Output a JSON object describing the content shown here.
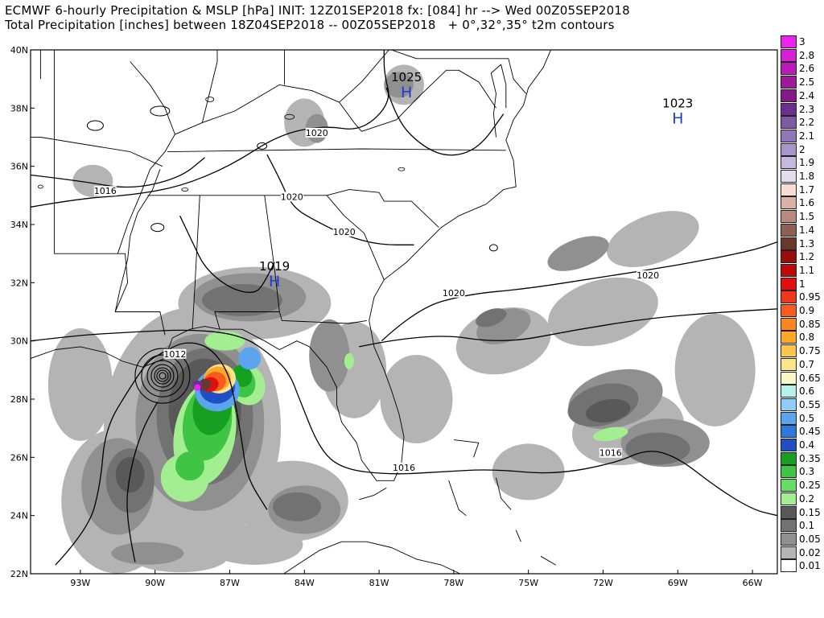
{
  "title_line1": "ECMWF 6-hourly Precipitation & MSLP [hPa] INIT: 12Z01SEP2018 fx: [084] hr --> Wed 00Z05SEP2018",
  "title_line2": "Total Precipitation [inches] between 18Z04SEP2018 -- 00Z05SEP2018   + 0°,32°,35° t2m contours",
  "map": {
    "lon_range": [
      -95,
      -65
    ],
    "lat_range": [
      22,
      40
    ],
    "lat_ticks": [
      {
        "lat": 40,
        "label": "40N"
      },
      {
        "lat": 38,
        "label": "38N"
      },
      {
        "lat": 36,
        "label": "36N"
      },
      {
        "lat": 34,
        "label": "34N"
      },
      {
        "lat": 32,
        "label": "32N"
      },
      {
        "lat": 30,
        "label": "30N"
      },
      {
        "lat": 28,
        "label": "28N"
      },
      {
        "lat": 26,
        "label": "26N"
      },
      {
        "lat": 24,
        "label": "24N"
      },
      {
        "lat": 22,
        "label": "22N"
      }
    ],
    "lon_ticks": [
      {
        "lon": -93,
        "label": "93W"
      },
      {
        "lon": -90,
        "label": "90W"
      },
      {
        "lon": -87,
        "label": "87W"
      },
      {
        "lon": -84,
        "label": "84W"
      },
      {
        "lon": -81,
        "label": "81W"
      },
      {
        "lon": -78,
        "label": "78W"
      },
      {
        "lon": -75,
        "label": "75W"
      },
      {
        "lon": -72,
        "label": "72W"
      },
      {
        "lon": -69,
        "label": "69W"
      },
      {
        "lon": -66,
        "label": "66W"
      }
    ],
    "pressure_centers": [
      {
        "type": "H",
        "value": "1025",
        "lon": -79.9,
        "lat": 38.7
      },
      {
        "type": "H",
        "value": "1023",
        "lon": -69.0,
        "lat": 37.8
      },
      {
        "type": "H",
        "value": "1019",
        "lon": -85.2,
        "lat": 32.2
      }
    ],
    "isobar_labels": [
      {
        "text": "1020",
        "lon": -83.5,
        "lat": 37.1
      },
      {
        "text": "1016",
        "lon": -92.0,
        "lat": 35.1
      },
      {
        "text": "1020",
        "lon": -84.5,
        "lat": 34.9
      },
      {
        "text": "1020",
        "lon": -82.4,
        "lat": 33.7
      },
      {
        "text": "1020",
        "lon": -70.2,
        "lat": 32.2
      },
      {
        "text": "1020",
        "lon": -78.0,
        "lat": 31.6
      },
      {
        "text": "1012",
        "lon": -89.2,
        "lat": 29.5
      },
      {
        "text": "1016",
        "lon": -80.0,
        "lat": 25.6
      },
      {
        "text": "1016",
        "lon": -71.7,
        "lat": 26.1
      }
    ],
    "storm_center": {
      "lon": -89.7,
      "lat": 28.8
    }
  },
  "legend": {
    "levels": [
      {
        "label": "3",
        "color": "#ee22ee"
      },
      {
        "label": "2.8",
        "color": "#d81fd6"
      },
      {
        "label": "2.6",
        "color": "#bd1bb7"
      },
      {
        "label": "2.5",
        "color": "#a0189c"
      },
      {
        "label": "2.4",
        "color": "#841a85"
      },
      {
        "label": "2.3",
        "color": "#6c2f8f"
      },
      {
        "label": "2.2",
        "color": "#7b5ba5"
      },
      {
        "label": "2.1",
        "color": "#8f77b9"
      },
      {
        "label": "2",
        "color": "#a994cb"
      },
      {
        "label": "1.9",
        "color": "#c7b9dd"
      },
      {
        "label": "1.8",
        "color": "#e3dbee"
      },
      {
        "label": "1.7",
        "color": "#f6ddd6"
      },
      {
        "label": "1.6",
        "color": "#d9b1a6"
      },
      {
        "label": "1.5",
        "color": "#b88a7d"
      },
      {
        "label": "1.4",
        "color": "#8e6053"
      },
      {
        "label": "1.3",
        "color": "#6b372a"
      },
      {
        "label": "1.2",
        "color": "#9a0d0d"
      },
      {
        "label": "1.1",
        "color": "#bf0a0a"
      },
      {
        "label": "1",
        "color": "#e01010"
      },
      {
        "label": "0.95",
        "color": "#f0361b"
      },
      {
        "label": "0.9",
        "color": "#f75c1e"
      },
      {
        "label": "0.85",
        "color": "#fb8521"
      },
      {
        "label": "0.8",
        "color": "#fda82a"
      },
      {
        "label": "0.75",
        "color": "#fdc64a"
      },
      {
        "label": "0.7",
        "color": "#fde48a"
      },
      {
        "label": "0.65",
        "color": "#fbf6c6"
      },
      {
        "label": "0.6",
        "color": "#b6f0ef"
      },
      {
        "label": "0.55",
        "color": "#8fcdf6"
      },
      {
        "label": "0.5",
        "color": "#5ba4ee"
      },
      {
        "label": "0.45",
        "color": "#2f78dd"
      },
      {
        "label": "0.4",
        "color": "#1f4ec7"
      },
      {
        "label": "0.35",
        "color": "#16a021"
      },
      {
        "label": "0.3",
        "color": "#3fc443"
      },
      {
        "label": "0.25",
        "color": "#67dc62"
      },
      {
        "label": "0.2",
        "color": "#a2ee91"
      },
      {
        "label": "0.15",
        "color": "#595959"
      },
      {
        "label": "0.1",
        "color": "#727272"
      },
      {
        "label": "0.05",
        "color": "#909090"
      },
      {
        "label": "0.02",
        "color": "#b4b4b4"
      },
      {
        "label": "0.01",
        "color": "#ffffff"
      }
    ]
  }
}
